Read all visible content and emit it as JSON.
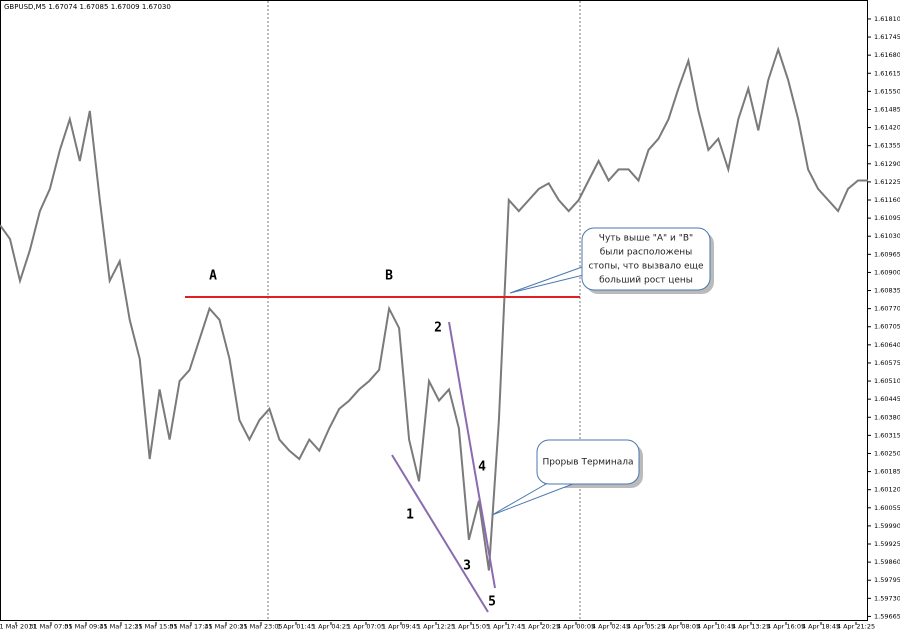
{
  "chart_data": {
    "type": "line",
    "title": "GBPUSD,M5  1.67074 1.67085 1.67009 1.67030",
    "color": "#7a7a7a",
    "values": [
      1.6107,
      1.6102,
      1.6087,
      1.6098,
      1.6112,
      1.612,
      1.6134,
      1.6145,
      1.613,
      1.6148,
      1.6116,
      1.6087,
      1.6094,
      1.6073,
      1.6059,
      1.6023,
      1.6048,
      1.603,
      1.6051,
      1.6055,
      1.6066,
      1.6077,
      1.6073,
      1.6059,
      1.6037,
      1.603,
      1.6037,
      1.6041,
      1.603,
      1.6026,
      1.6023,
      1.603,
      1.6026,
      1.6034,
      1.6041,
      1.6044,
      1.6048,
      1.6051,
      1.6055,
      1.6077,
      1.607,
      1.603,
      1.6015,
      1.6051,
      1.6044,
      1.6048,
      1.6034,
      1.5994,
      1.6008,
      1.5983,
      1.6037,
      1.6116,
      1.6112,
      1.6116,
      1.612,
      1.6122,
      1.6116,
      1.6112,
      1.6116,
      1.6123,
      1.613,
      1.6123,
      1.6127,
      1.6127,
      1.6123,
      1.6134,
      1.6138,
      1.6145,
      1.6156,
      1.6166,
      1.6148,
      1.6134,
      1.6138,
      1.6127,
      1.6145,
      1.6156,
      1.6141,
      1.6159,
      1.617,
      1.6159,
      1.6145,
      1.6127,
      1.612,
      1.6116,
      1.6112,
      1.612,
      1.6123,
      1.6123
    ],
    "x_labels": [
      "31 Mar 2011",
      "31 Mar 07:05",
      "31 Mar 09:45",
      "31 Mar 12:25",
      "31 Mar 15:05",
      "31 Mar 17:45",
      "31 Mar 20:25",
      "31 Mar 23:05",
      "1 Apr 01:45",
      "1 Apr 04:25",
      "1 Apr 07:05",
      "1 Apr 09:45",
      "1 Apr 12:25",
      "1 Apr 15:05",
      "1 Apr 17:45",
      "1 Apr 20:25",
      "4 Apr 00:05",
      "4 Apr 02:45",
      "4 Apr 05:25",
      "4 Apr 08:05",
      "4 Apr 10:45",
      "4 Apr 13:25",
      "4 Apr 16:05",
      "4 Apr 18:45",
      "4 Apr 21:25"
    ],
    "ylim": [
      1.59645,
      1.61878
    ],
    "yticks": [
      {
        "value": 1.6181,
        "label": "1.61810"
      },
      1.61745,
      {
        "value": 1.6168,
        "label": "1.61680"
      },
      1.61615,
      {
        "value": 1.6155,
        "label": "1.61550"
      },
      1.61485,
      {
        "value": 1.6142,
        "label": "1.61420"
      },
      1.61355,
      {
        "value": 1.6129,
        "label": "1.61290"
      },
      1.61225,
      {
        "value": 1.6116,
        "label": "1.61160"
      },
      1.61095,
      {
        "value": 1.6103,
        "label": "1.61030"
      },
      1.60965,
      {
        "value": 1.609,
        "label": "1.60900"
      },
      1.60835,
      {
        "value": 1.6077,
        "label": "1.60770"
      },
      1.60705,
      {
        "value": 1.6064,
        "label": "1.60640"
      },
      1.60575,
      {
        "value": 1.6051,
        "label": "1.60510"
      },
      1.60445,
      {
        "value": 1.6038,
        "label": "1.60380"
      },
      1.60315,
      {
        "value": 1.6025,
        "label": "1.60250"
      },
      1.60185,
      {
        "value": 1.6012,
        "label": "1.60120"
      },
      1.60055,
      {
        "value": 1.5999,
        "label": "1.59990"
      },
      1.59925,
      {
        "value": 1.5986,
        "label": "1.59860"
      },
      1.59795,
      {
        "value": 1.5973,
        "label": "1.59730"
      },
      1.59665
    ],
    "annotations": [
      "A",
      "B",
      "1",
      "2",
      "3",
      "4",
      "5"
    ],
    "callouts": [
      {
        "lines": [
          "Чуть выше \"A\" и \"B\"",
          "были расположены",
          "стопы, что вызвало еще",
          "больший рост цены"
        ]
      },
      {
        "lines": [
          "Прорыв Терминала"
        ]
      }
    ]
  }
}
